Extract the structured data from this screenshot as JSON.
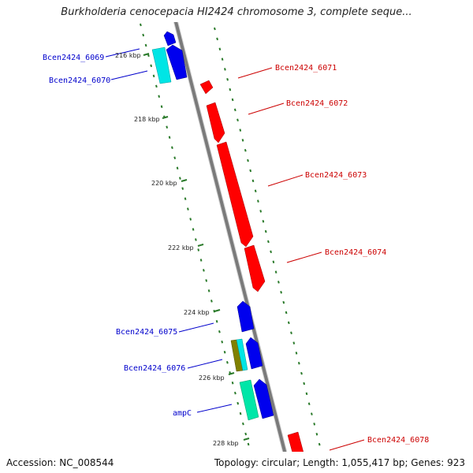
{
  "title": "Burkholderia cenocepacia HI2424 chromosome 3, complete seque...",
  "footer": {
    "accession_text": "Accession: NC_008544",
    "topology_text": "Topology: circular; Length: 1,055,417 bp; Genes: 923"
  },
  "colors": {
    "backbone": "#7a7a7a",
    "forward_gene": "#ff0000",
    "reverse_gene": "#0000ee",
    "tick": "#2a7a2a",
    "forward_label": "#cc0000",
    "reverse_label": "#0000cc",
    "cyan_gene": "#00e5e5",
    "aqua_gene": "#00e6a8",
    "olive_gene": "#808000"
  },
  "kbp_markers": [
    "216 kbp",
    "218 kbp",
    "220 kbp",
    "222 kbp",
    "224 kbp",
    "226 kbp",
    "228 kbp"
  ],
  "gene_labels": {
    "bcen6069": "Bcen2424_6069",
    "bcen6070": "Bcen2424_6070",
    "bcen6071": "Bcen2424_6071",
    "bcen6072": "Bcen2424_6072",
    "bcen6073": "Bcen2424_6073",
    "bcen6074": "Bcen2424_6074",
    "bcen6075": "Bcen2424_6075",
    "bcen6076": "Bcen2424_6076",
    "ampC": "ampC",
    "bcen6078": "Bcen2424_6078"
  }
}
